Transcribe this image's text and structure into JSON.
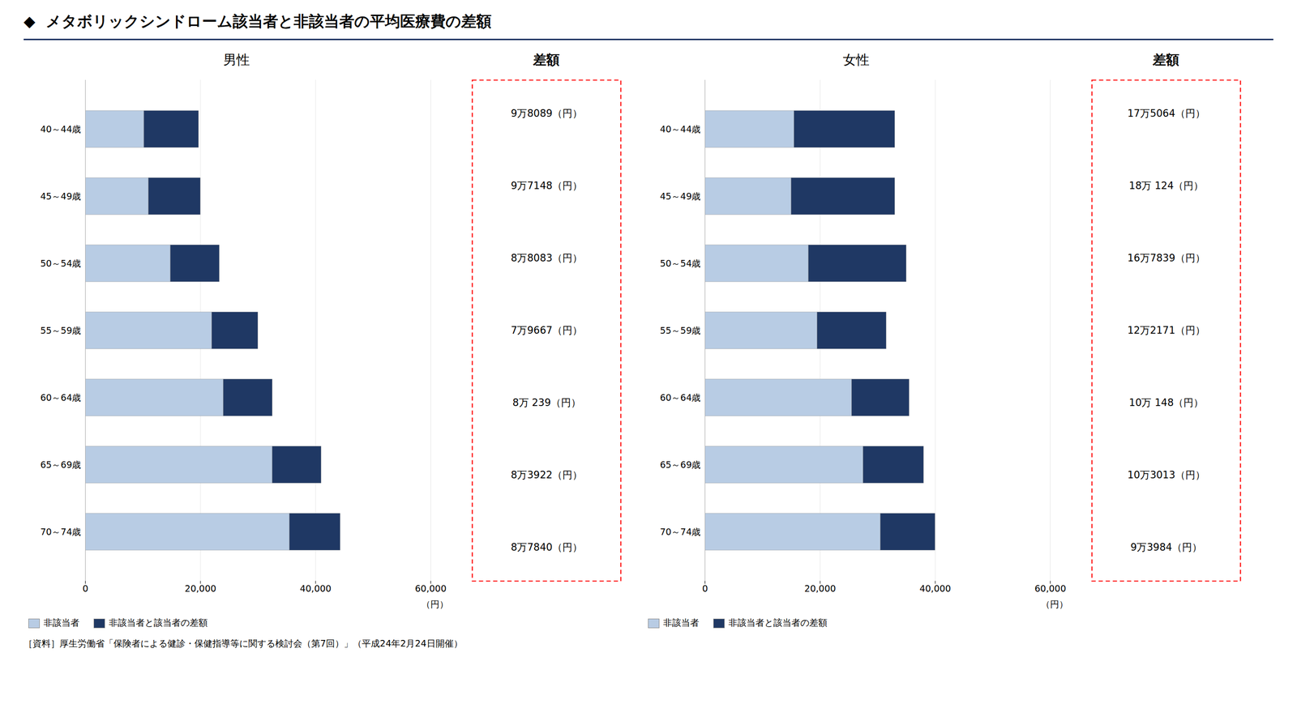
{
  "title": "◆  メタボリックシンドローム該当者と非該当者の平均医療費の差額",
  "caption": "［資料］厚生労働省「保険者による健診・保健指導等に関する検討会（第7回）」（平成24年2月24日開催）",
  "chart_data": [
    {
      "type": "bar",
      "title": "男性",
      "orientation": "horizontal",
      "stacked": true,
      "grid": true,
      "legend": "lower left",
      "categories": [
        "40～44歳",
        "45～49歳",
        "50～54歳",
        "55～59歳",
        "60～64歳",
        "65～69歳",
        "70～74歳"
      ],
      "series": [
        {
          "name": "非該当者",
          "color": "#b8cce4",
          "values": [
            10200,
            11000,
            14800,
            22000,
            24000,
            32500,
            35500
          ]
        },
        {
          "name": "非該当者と該当者の差額",
          "color": "#1f3864",
          "values": [
            9500,
            9000,
            8500,
            8000,
            8500,
            8500,
            8800
          ]
        }
      ],
      "xlim": [
        0,
        60000
      ],
      "xticks": [
        0,
        {
          "value": 20000,
          "label": "20,000"
        },
        {
          "value": 40000,
          "label": "40,000"
        },
        {
          "value": 60000,
          "label": "60,000"
        }
      ],
      "xlabel": "（円）",
      "annotation_title": "差額",
      "annotations": [
        "9万8089（円）",
        "9万7148（円）",
        "8万8083（円）",
        "7万9667（円）",
        "8万 239（円）",
        "8万3922（円）",
        "8万7840（円）"
      ]
    },
    {
      "type": "bar",
      "title": "女性",
      "orientation": "horizontal",
      "stacked": true,
      "grid": true,
      "legend": "lower left",
      "categories": [
        "40～44歳",
        "45～49歳",
        "50～54歳",
        "55～59歳",
        "60～64歳",
        "65～69歳",
        "70～74歳"
      ],
      "series": [
        {
          "name": "非該当者",
          "color": "#b8cce4",
          "values": [
            15500,
            15000,
            18000,
            19500,
            25500,
            27500,
            30500
          ]
        },
        {
          "name": "非該当者と該当者の差額",
          "color": "#1f3864",
          "values": [
            17500,
            18000,
            17000,
            12000,
            10000,
            10500,
            9500
          ]
        }
      ],
      "xlim": [
        0,
        60000
      ],
      "xticks": [
        0,
        {
          "value": 20000,
          "label": "20,000"
        },
        {
          "value": 40000,
          "label": "40,000"
        },
        {
          "value": 60000,
          "label": "60,000"
        }
      ],
      "xlabel": "（円）",
      "annotation_title": "差額",
      "annotations": [
        "17万5064（円）",
        "18万 124（円）",
        "16万7839（円）",
        "12万2171（円）",
        "10万 148（円）",
        "10万3013（円）",
        "9万3984（円）"
      ]
    }
  ]
}
